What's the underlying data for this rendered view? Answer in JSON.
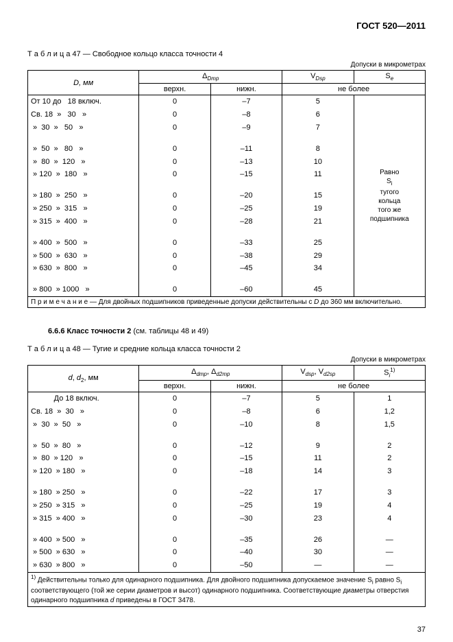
{
  "doc_header": "ГОСТ 520—2011",
  "page_number": "37",
  "table47": {
    "caption_prefix": "Т а б л и ц а",
    "caption_num": "47",
    "caption_text": "— Свободное кольцо класса точности 4",
    "tolerance_note": "Допуски в микрометрах",
    "col_D": "D, мм",
    "col_dmp_html": "Δ<span class=\"italic sub\">Dmp</span>",
    "col_vdsp_html": "V<span class=\"italic sub\">Dsp</span>",
    "col_se_html": "S<span class=\"italic sub\">e</span>",
    "sub_upper": "верхн.",
    "sub_lower": "нижн.",
    "sub_not_more": "не более",
    "rows": [
      {
        "range": "От 10 до   18 включ.",
        "u": "0",
        "l": "–7",
        "v": "5"
      },
      {
        "range": "Св. 18  »   30   »",
        "u": "0",
        "l": "–8",
        "v": "6"
      },
      {
        "range": " »  30  »   50   »",
        "u": "0",
        "l": "–9",
        "v": "7"
      },
      {
        "gap": true
      },
      {
        "range": " »  50  »   80   »",
        "u": "0",
        "l": "–11",
        "v": "8"
      },
      {
        "range": " »  80  »  120   »",
        "u": "0",
        "l": "–13",
        "v": "10"
      },
      {
        "range": " » 120  »  180   »",
        "u": "0",
        "l": "–15",
        "v": "11"
      },
      {
        "gap": true
      },
      {
        "range": " » 180  »  250   »",
        "u": "0",
        "l": "–20",
        "v": "15"
      },
      {
        "range": " » 250  »  315   »",
        "u": "0",
        "l": "–25",
        "v": "19"
      },
      {
        "range": " » 315  »  400   »",
        "u": "0",
        "l": "–28",
        "v": "21"
      },
      {
        "gap": true
      },
      {
        "range": " » 400  »  500   »",
        "u": "0",
        "l": "–33",
        "v": "25"
      },
      {
        "range": " » 500  »  630   »",
        "u": "0",
        "l": "–38",
        "v": "29"
      },
      {
        "range": " » 630  »  800   »",
        "u": "0",
        "l": "–45",
        "v": "34"
      },
      {
        "gap": true
      },
      {
        "range": " » 800  » 1000   »",
        "u": "0",
        "l": "–60",
        "v": "45"
      }
    ],
    "se_lines_html": "Равно<br>S<span class=\"sub\">i</span><br>тугого<br>кольца<br>того же<br>подшипника",
    "note_html": "П р и м е ч а н и е — Для двойных подшипников приведенные допуски действительны с <span class=\"italic\">D</span> до 360 мм включительно."
  },
  "section_6_6_6": {
    "num": "6.6.6",
    "title": "Класс точности 2",
    "suffix": "(см. таблицы 48 и 49)"
  },
  "table48": {
    "caption_prefix": "Т а б л и ц а",
    "caption_num": "48",
    "caption_text": "— Тугие и средние кольца класса точности 2",
    "tolerance_note": "Допуски в микрометрах",
    "col_d_html": "<span class=\"italic\">d</span>, <span class=\"italic\">d</span><span class=\"sub\">2</span>, мм",
    "col_dmp_html": "Δ<span class=\"italic sub\">dmp</span>, Δ<span class=\"italic sub\">d2mp</span>",
    "col_vdsp_html": "V<span class=\"italic sub\">dsp</span>, V<span class=\"italic sub\">d2sp</span>",
    "col_si_html": "S<span class=\"italic sub\">i</span><span class=\"sup\">1)</span>",
    "sub_upper": "верхн.",
    "sub_lower": "нижн.",
    "sub_not_more": "не более",
    "rows": [
      {
        "range": "           До 18 включ.",
        "u": "0",
        "l": "–7",
        "v": "5",
        "s": "1"
      },
      {
        "range": "Св. 18  »  30   »",
        "u": "0",
        "l": "–8",
        "v": "6",
        "s": "1,2"
      },
      {
        "range": " »  30  »  50   »",
        "u": "0",
        "l": "–10",
        "v": "8",
        "s": "1,5"
      },
      {
        "gap": true
      },
      {
        "range": " »  50  »  80   »",
        "u": "0",
        "l": "–12",
        "v": "9",
        "s": "2"
      },
      {
        "range": " »  80  » 120   »",
        "u": "0",
        "l": "–15",
        "v": "11",
        "s": "2"
      },
      {
        "range": " » 120  » 180   »",
        "u": "0",
        "l": "–18",
        "v": "14",
        "s": "3"
      },
      {
        "gap": true
      },
      {
        "range": " » 180  » 250   »",
        "u": "0",
        "l": "–22",
        "v": "17",
        "s": "3"
      },
      {
        "range": " » 250  » 315   »",
        "u": "0",
        "l": "–25",
        "v": "19",
        "s": "4"
      },
      {
        "range": " » 315  » 400   »",
        "u": "0",
        "l": "–30",
        "v": "23",
        "s": "4"
      },
      {
        "gap": true
      },
      {
        "range": " » 400  » 500   »",
        "u": "0",
        "l": "–35",
        "v": "26",
        "s": "—"
      },
      {
        "range": " » 500  » 630   »",
        "u": "0",
        "l": "–40",
        "v": "30",
        "s": "—"
      },
      {
        "range": " » 630  » 800   »",
        "u": "0",
        "l": "–50",
        "v": "—",
        "s": "—"
      }
    ],
    "footnote_html": "<span class=\"sup\">1)</span> Действительны только для одинарного подшипника. Для двойного подшипника допускаемое значение S<span class=\"sub\">i</span> равно S<span class=\"sub\">i</span> соответствующего (той же серии диаметров и высот) одинарного подшипника. Соответствующие диаметры отверстия одинарного подшипника <span class=\"italic\">d</span> приведены в ГОСТ 3478."
  }
}
